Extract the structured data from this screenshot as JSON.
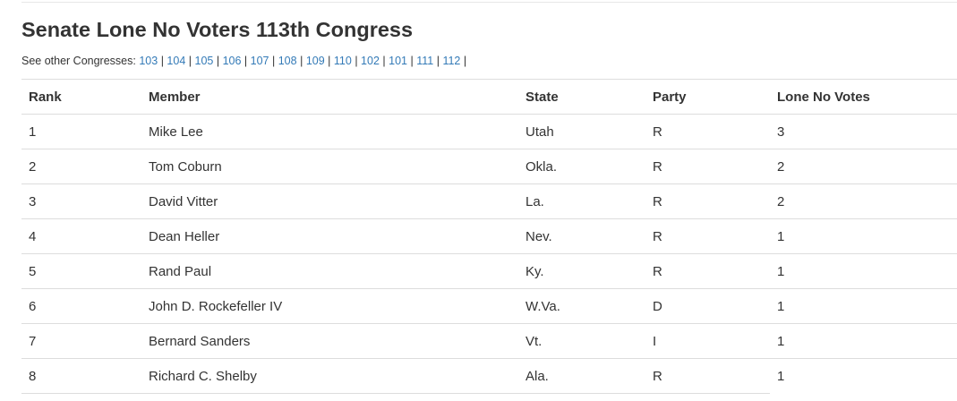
{
  "page": {
    "title": "Senate Lone No Voters 113th Congress",
    "other_label": "See other Congresses:",
    "congress_links": [
      "103",
      "104",
      "105",
      "106",
      "107",
      "108",
      "109",
      "110",
      "102",
      "101",
      "111",
      "112"
    ]
  },
  "table": {
    "headers": [
      "Rank",
      "Member",
      "State",
      "Party",
      "Lone No Votes"
    ],
    "rows": [
      [
        "1",
        "Mike Lee",
        "Utah",
        "R",
        "3"
      ],
      [
        "2",
        "Tom Coburn",
        "Okla.",
        "R",
        "2"
      ],
      [
        "3",
        "David Vitter",
        "La.",
        "R",
        "2"
      ],
      [
        "4",
        "Dean Heller",
        "Nev.",
        "R",
        "1"
      ],
      [
        "5",
        "Rand Paul",
        "Ky.",
        "R",
        "1"
      ],
      [
        "6",
        "John D. Rockefeller IV",
        "W.Va.",
        "D",
        "1"
      ],
      [
        "7",
        "Bernard Sanders",
        "Vt.",
        "I",
        "1"
      ],
      [
        "8",
        "Richard C. Shelby",
        "Ala.",
        "R",
        "1"
      ]
    ]
  },
  "colors": {
    "link": "#337ab7",
    "text": "#333333",
    "rule": "#dddddd"
  }
}
